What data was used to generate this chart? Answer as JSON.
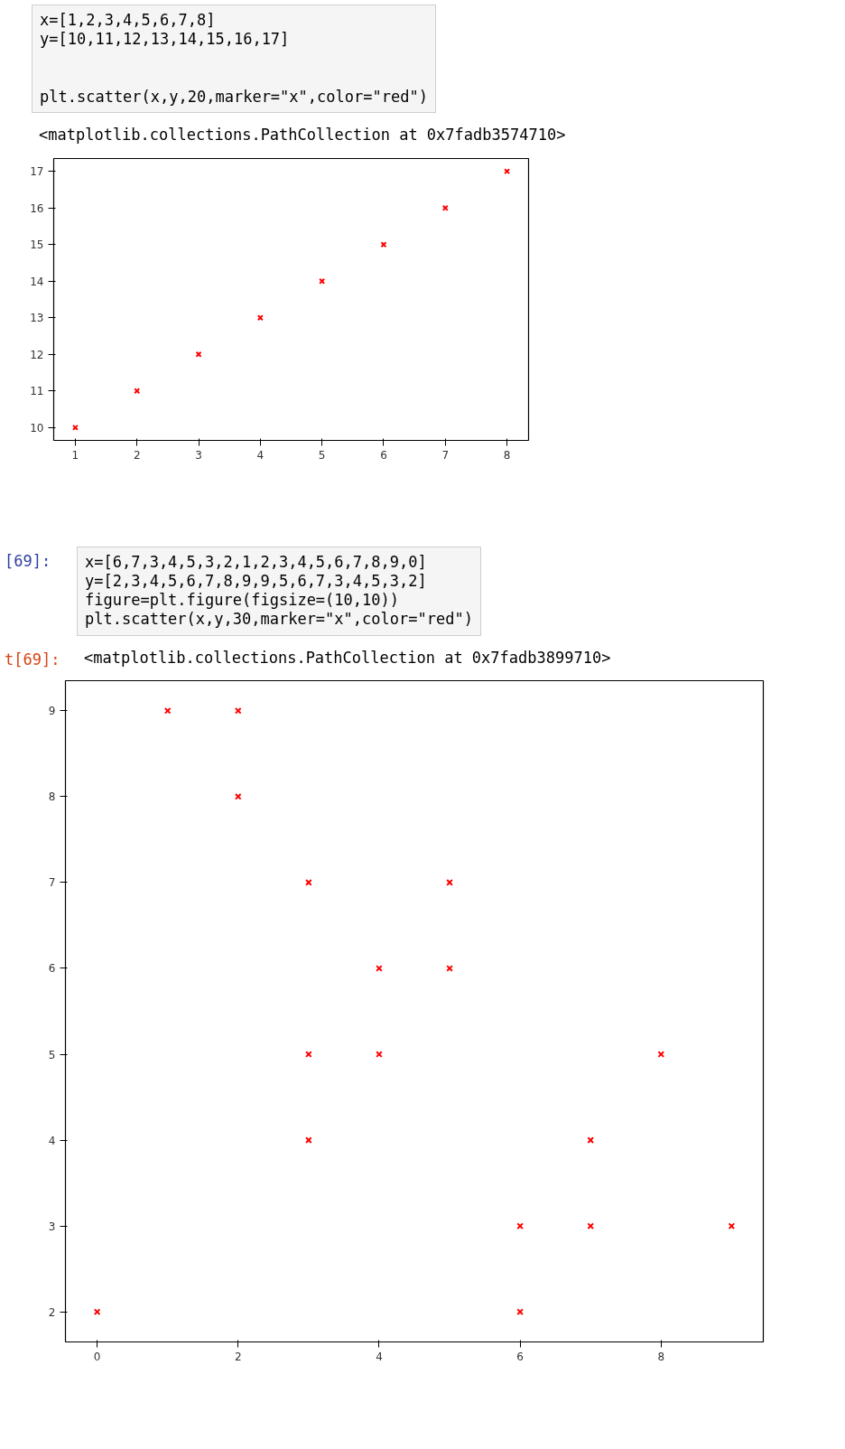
{
  "chart_data": [
    {
      "type": "scatter",
      "x": [
        1,
        2,
        3,
        4,
        5,
        6,
        7,
        8
      ],
      "values": [
        10,
        11,
        12,
        13,
        14,
        15,
        16,
        17
      ],
      "color": "#ff0000",
      "marker": "cross",
      "xlim": [
        0.65,
        8.35
      ],
      "ylim": [
        9.65,
        17.35
      ],
      "xticks": [
        1,
        2,
        3,
        4,
        5,
        6,
        7,
        8
      ],
      "yticks": [
        10,
        11,
        12,
        13,
        14,
        15,
        16,
        17
      ],
      "annotations": [
        "x=[1,2,3,4,5,6,7,8]\ny=[10,11,12,13,14,15,16,17]\n\n\nplt.scatter(x,y,20,marker=\"x\",color=\"red\")",
        "<matplotlib.collections.PathCollection at 0x7fadb3574710>"
      ]
    },
    {
      "type": "scatter",
      "x": [
        6,
        7,
        3,
        4,
        5,
        3,
        2,
        1,
        2,
        3,
        4,
        5,
        6,
        7,
        8,
        9,
        0
      ],
      "values": [
        2,
        3,
        4,
        5,
        6,
        7,
        8,
        9,
        9,
        5,
        6,
        7,
        3,
        4,
        5,
        3,
        2
      ],
      "color": "#ff0000",
      "marker": "cross",
      "xlim": [
        -0.45,
        9.45
      ],
      "ylim": [
        1.65,
        9.35
      ],
      "xticks": [
        0,
        2,
        4,
        6,
        8
      ],
      "yticks": [
        2,
        3,
        4,
        5,
        6,
        7,
        8,
        9
      ],
      "annotations": [
        "[69]:",
        "x=[6,7,3,4,5,3,2,1,2,3,4,5,6,7,8,9,0]\ny=[2,3,4,5,6,7,8,9,9,5,6,7,3,4,5,3,2]\nfigure=plt.figure(figsize=(10,10))\nplt.scatter(x,y,30,marker=\"x\",color=\"red\")\n",
        "t[69]:",
        "<matplotlib.collections.PathCollection at 0x7fadb3899710>"
      ]
    }
  ]
}
